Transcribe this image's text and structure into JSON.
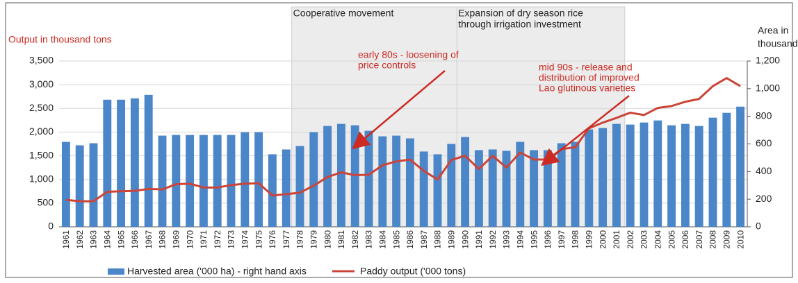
{
  "chart_data": {
    "type": "bar_line",
    "ylabel": "Output in thousand tons",
    "y2label": [
      "Area in",
      "thousand ha"
    ],
    "categories": [
      "1961",
      "1962",
      "1963",
      "1964",
      "1965",
      "1966",
      "1967",
      "1968",
      "1969",
      "1970",
      "1971",
      "1972",
      "1973",
      "1974",
      "1975",
      "1976",
      "1977",
      "1978",
      "1979",
      "1980",
      "1981",
      "1982",
      "1983",
      "1984",
      "1985",
      "1986",
      "1987",
      "1988",
      "1989",
      "1990",
      "1991",
      "1992",
      "1993",
      "1994",
      "1995",
      "1996",
      "1997",
      "1998",
      "1999",
      "2000",
      "2001",
      "2002",
      "2003",
      "2004",
      "2005",
      "2006",
      "2007",
      "2008",
      "2009",
      "2010"
    ],
    "series": [
      {
        "name": "Harvested area ('000 ha) - right hand axis",
        "kind": "bar",
        "axis": "y2",
        "color": "#4a86c8",
        "values": [
          615,
          590,
          605,
          920,
          920,
          930,
          955,
          660,
          665,
          665,
          665,
          665,
          665,
          685,
          685,
          525,
          560,
          585,
          685,
          730,
          745,
          735,
          695,
          655,
          660,
          640,
          545,
          525,
          600,
          650,
          555,
          560,
          550,
          615,
          555,
          555,
          605,
          615,
          705,
          715,
          745,
          740,
          755,
          770,
          735,
          745,
          730,
          790,
          825,
          870
        ]
      },
      {
        "name": "Paddy output ('000 tons)",
        "kind": "line",
        "axis": "y",
        "color": "#cc4438",
        "values": [
          570,
          540,
          540,
          740,
          750,
          760,
          800,
          790,
          900,
          910,
          830,
          830,
          880,
          910,
          920,
          660,
          690,
          720,
          870,
          1050,
          1150,
          1090,
          1100,
          1300,
          1380,
          1420,
          1180,
          1000,
          1410,
          1500,
          1220,
          1500,
          1250,
          1570,
          1420,
          1420,
          1640,
          1680,
          2080,
          2200,
          2300,
          2410,
          2360,
          2510,
          2550,
          2640,
          2700,
          2970,
          3140,
          2970
        ]
      }
    ],
    "ylim": [
      0,
      3500
    ],
    "yticks": [
      0,
      500,
      {
        "value": 1000,
        "label": "1,000"
      },
      {
        "value": 1500,
        "label": "1,500"
      },
      {
        "value": 2000,
        "label": "2,000"
      },
      {
        "value": 2500,
        "label": "2,500"
      },
      {
        "value": 3000,
        "label": "3,000"
      },
      {
        "value": 3500,
        "label": "3,500"
      }
    ],
    "y2lim": [
      0,
      1200
    ],
    "y2ticks": [
      0,
      200,
      400,
      600,
      800,
      {
        "value": 1000,
        "label": "1,000"
      },
      {
        "value": 1200,
        "label": "1,200"
      }
    ],
    "grid": true,
    "periods": [
      {
        "lines": [
          "Cooperative movement"
        ],
        "start": "1978",
        "end": "1989"
      },
      {
        "lines": [
          "Expansion of dry season rice",
          "through irrigation investment"
        ],
        "start": "1990",
        "end": "2001"
      }
    ],
    "annotations": [
      {
        "lines": [
          "early 80s - loosening of",
          "price controls"
        ]
      },
      {
        "lines": [
          "mid 90s - release and",
          "distribution of improved",
          "Lao glutinous varieties"
        ]
      }
    ]
  }
}
